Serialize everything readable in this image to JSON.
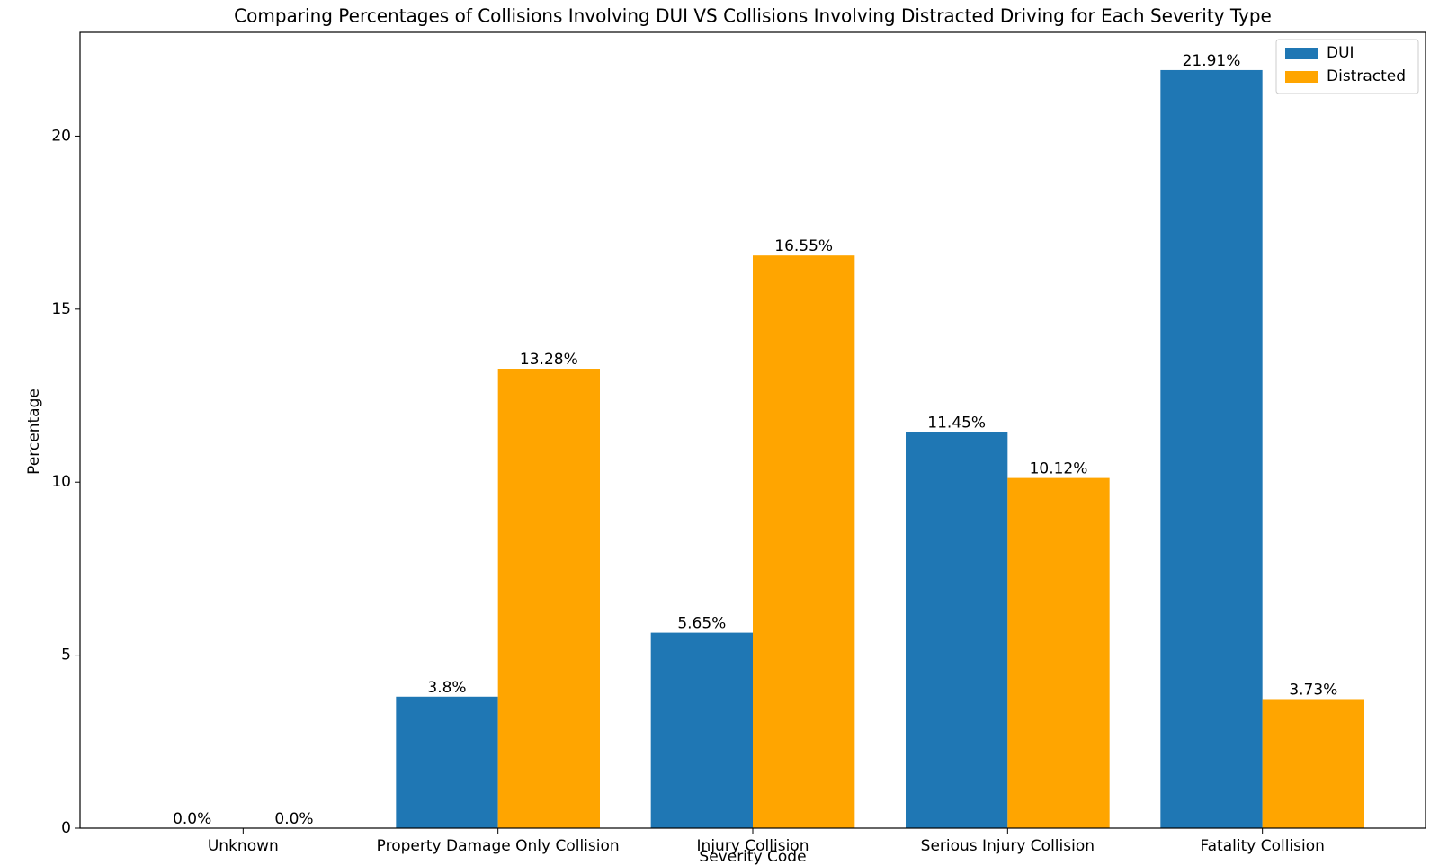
{
  "chart_data": {
    "type": "bar",
    "title": "Comparing Percentages of Collisions Involving DUI VS Collisions Involving Distracted Driving for Each Severity Type",
    "x_label": "Severity Code",
    "y_label": "Percentage",
    "categories": [
      "Unknown",
      "Property Damage Only Collision",
      "Injury Collision",
      "Serious Injury Collision",
      "Fatality Collision"
    ],
    "series": [
      {
        "name": "DUI",
        "color": "#1f77b4",
        "values": [
          0,
          3.8,
          5.65,
          11.45,
          21.91
        ],
        "value_labels": [
          "0.0%",
          "3.8%",
          "5.65%",
          "11.45%",
          "21.91%"
        ]
      },
      {
        "name": "Distracted",
        "color": "#ffa500",
        "values": [
          0,
          13.28,
          16.55,
          10.12,
          3.73
        ],
        "value_labels": [
          "0.0%",
          "13.28%",
          "16.55%",
          "10.12%",
          "3.73%"
        ]
      }
    ],
    "ylim": [
      0,
      23.0
    ],
    "yticks": [
      0,
      5,
      10,
      15,
      20
    ],
    "legend": "upper right"
  }
}
